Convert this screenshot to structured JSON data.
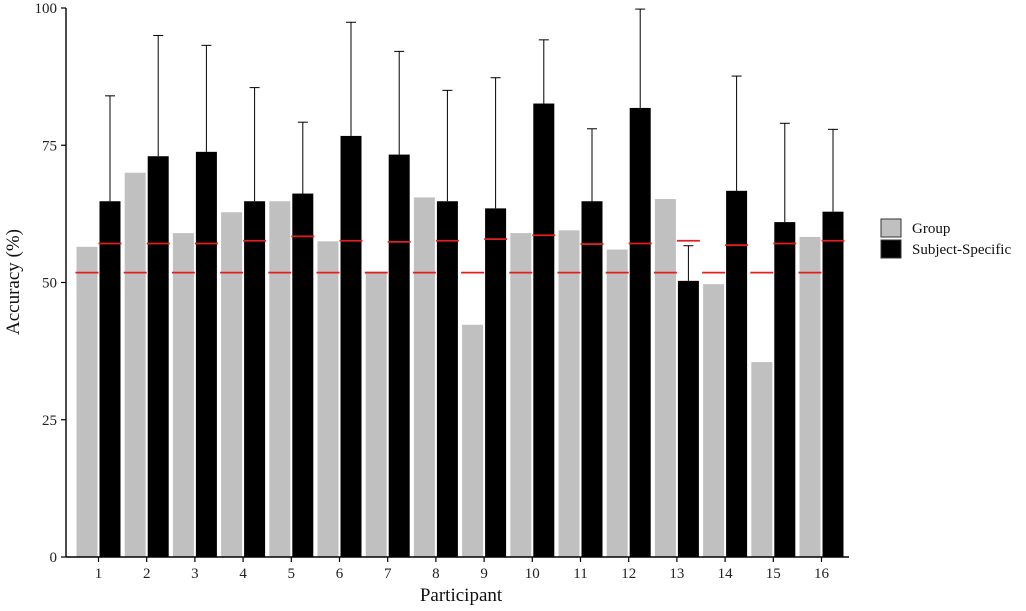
{
  "chart_data": {
    "type": "bar",
    "xlabel": "Participant",
    "ylabel": "Accuracy (%)",
    "ylim": [
      0,
      100
    ],
    "yticks": [
      0,
      25,
      50,
      75,
      100
    ],
    "categories": [
      "1",
      "2",
      "3",
      "4",
      "5",
      "6",
      "7",
      "8",
      "9",
      "10",
      "11",
      "12",
      "13",
      "14",
      "15",
      "16"
    ],
    "series": [
      {
        "name": "Group",
        "color": "#c0c0c0",
        "values": [
          56.5,
          70,
          59,
          62.8,
          64.8,
          57.5,
          52,
          65.5,
          42.3,
          59,
          59.5,
          56,
          65.2,
          49.7,
          35.5,
          58.3
        ],
        "chance_level": [
          51.8,
          51.8,
          51.8,
          51.8,
          51.8,
          51.8,
          51.8,
          51.8,
          51.8,
          51.8,
          51.8,
          51.8,
          51.8,
          51.8,
          51.8,
          51.8
        ]
      },
      {
        "name": "Subject-Specific",
        "color": "#000000",
        "values": [
          64.8,
          73,
          73.8,
          64.8,
          66.2,
          76.7,
          73.3,
          64.8,
          63.5,
          82.6,
          64.8,
          81.8,
          50.3,
          66.7,
          61,
          62.9
        ],
        "error_upper": [
          84,
          95,
          93.2,
          85.5,
          79.2,
          97.4,
          92.1,
          85,
          87.3,
          94.2,
          78,
          99.8,
          56.7,
          87.6,
          79,
          77.9
        ],
        "chance_level": [
          57.1,
          57.1,
          57.1,
          57.6,
          58.4,
          57.6,
          57.4,
          57.6,
          57.9,
          58.6,
          57,
          57.1,
          57.6,
          56.8,
          57.1,
          57.6
        ]
      }
    ],
    "chance_line_color": "#e0201e",
    "legend_position": "right",
    "grid": false
  }
}
